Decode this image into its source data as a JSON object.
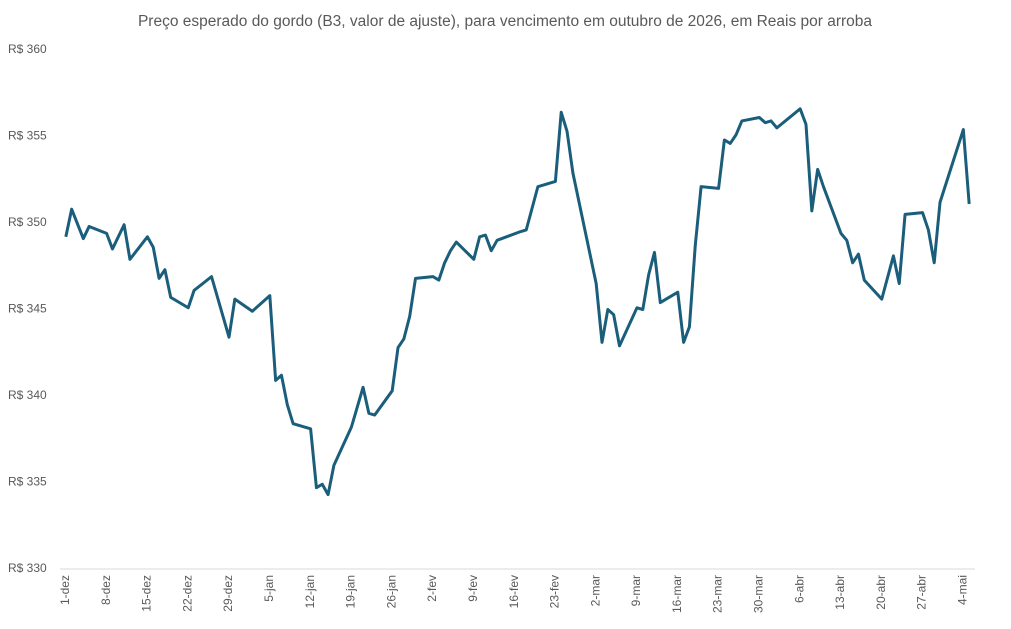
{
  "chart_data": {
    "type": "line",
    "title": "Preço esperado do gordo (B3, valor de ajuste), para vencimento em outubro de 2026, em Reais por arroba",
    "x": [
      0,
      1,
      3,
      4,
      7,
      8,
      10,
      11,
      14,
      15,
      16,
      17,
      18,
      21,
      22,
      25,
      28,
      29,
      32,
      35,
      36,
      37,
      38,
      39,
      42,
      43,
      44,
      45,
      46,
      49,
      51,
      52,
      53,
      56,
      57,
      58,
      59,
      60,
      63,
      64,
      65,
      66,
      67,
      70,
      71,
      72,
      73,
      74,
      78,
      79,
      81,
      84,
      85,
      86,
      87,
      91,
      92,
      93,
      94,
      95,
      98,
      99,
      100,
      101,
      102,
      105,
      106,
      107,
      108,
      109,
      112,
      113,
      114,
      115,
      116,
      119,
      120,
      121,
      122,
      126,
      127,
      128,
      129,
      130,
      133,
      134,
      135,
      136,
      137,
      140,
      142,
      143,
      144,
      147,
      148,
      149,
      150,
      154,
      155
    ],
    "series": [
      {
        "name": "Preço esperado do gordo",
        "color": "#1b5e7b",
        "values": [
          349.2,
          350.8,
          349.1,
          349.8,
          349.4,
          348.5,
          349.9,
          347.9,
          349.2,
          348.6,
          346.8,
          347.3,
          345.7,
          345.1,
          346.1,
          346.9,
          343.4,
          345.6,
          344.9,
          345.8,
          340.9,
          341.2,
          339.5,
          338.4,
          338.1,
          334.7,
          334.9,
          334.3,
          336.0,
          338.2,
          340.5,
          339.0,
          338.9,
          340.3,
          342.8,
          343.3,
          344.6,
          346.8,
          346.9,
          346.7,
          347.7,
          348.4,
          348.9,
          347.9,
          349.2,
          349.3,
          348.4,
          349.0,
          349.5,
          349.6,
          352.1,
          352.4,
          356.4,
          355.3,
          352.9,
          346.5,
          343.1,
          345.0,
          344.7,
          342.9,
          345.1,
          345.0,
          347.0,
          348.3,
          345.4,
          346.0,
          343.1,
          344.0,
          348.7,
          352.1,
          352.0,
          354.8,
          354.6,
          355.1,
          355.9,
          356.1,
          355.8,
          355.9,
          355.5,
          356.6,
          355.7,
          350.7,
          353.1,
          352.1,
          349.4,
          349.0,
          347.7,
          348.2,
          346.7,
          345.6,
          348.1,
          346.5,
          350.5,
          350.6,
          349.6,
          347.7,
          351.2,
          355.4,
          351.1
        ]
      }
    ],
    "xlim": [
      -1,
      156
    ],
    "xticks": [
      {
        "value": 0,
        "label": "1-dez"
      },
      {
        "value": 7,
        "label": "8-dez"
      },
      {
        "value": 14,
        "label": "15-dez"
      },
      {
        "value": 21,
        "label": "22-dez"
      },
      {
        "value": 28,
        "label": "29-dez"
      },
      {
        "value": 35,
        "label": "5-jan"
      },
      {
        "value": 42,
        "label": "12-jan"
      },
      {
        "value": 49,
        "label": "19-jan"
      },
      {
        "value": 56,
        "label": "26-jan"
      },
      {
        "value": 63,
        "label": "2-fev"
      },
      {
        "value": 70,
        "label": "9-fev"
      },
      {
        "value": 77,
        "label": "16-fev"
      },
      {
        "value": 84,
        "label": "23-fev"
      },
      {
        "value": 91,
        "label": "2-mar"
      },
      {
        "value": 98,
        "label": "9-mar"
      },
      {
        "value": 105,
        "label": "16-mar"
      },
      {
        "value": 112,
        "label": "23-mar"
      },
      {
        "value": 119,
        "label": "30-mar"
      },
      {
        "value": 126,
        "label": "6-abr"
      },
      {
        "value": 133,
        "label": "13-abr"
      },
      {
        "value": 140,
        "label": "20-abr"
      },
      {
        "value": 147,
        "label": "27-abr"
      },
      {
        "value": 154,
        "label": "4-mai"
      }
    ],
    "ylim": [
      330,
      360
    ],
    "yticks": [
      {
        "value": 330,
        "label": "R$ 330"
      },
      {
        "value": 335,
        "label": "R$ 335"
      },
      {
        "value": 340,
        "label": "R$ 340"
      },
      {
        "value": 345,
        "label": "R$ 345"
      },
      {
        "value": 350,
        "label": "R$ 350"
      },
      {
        "value": 355,
        "label": "R$ 355"
      },
      {
        "value": 360,
        "label": "R$ 360"
      }
    ],
    "grid": false
  }
}
